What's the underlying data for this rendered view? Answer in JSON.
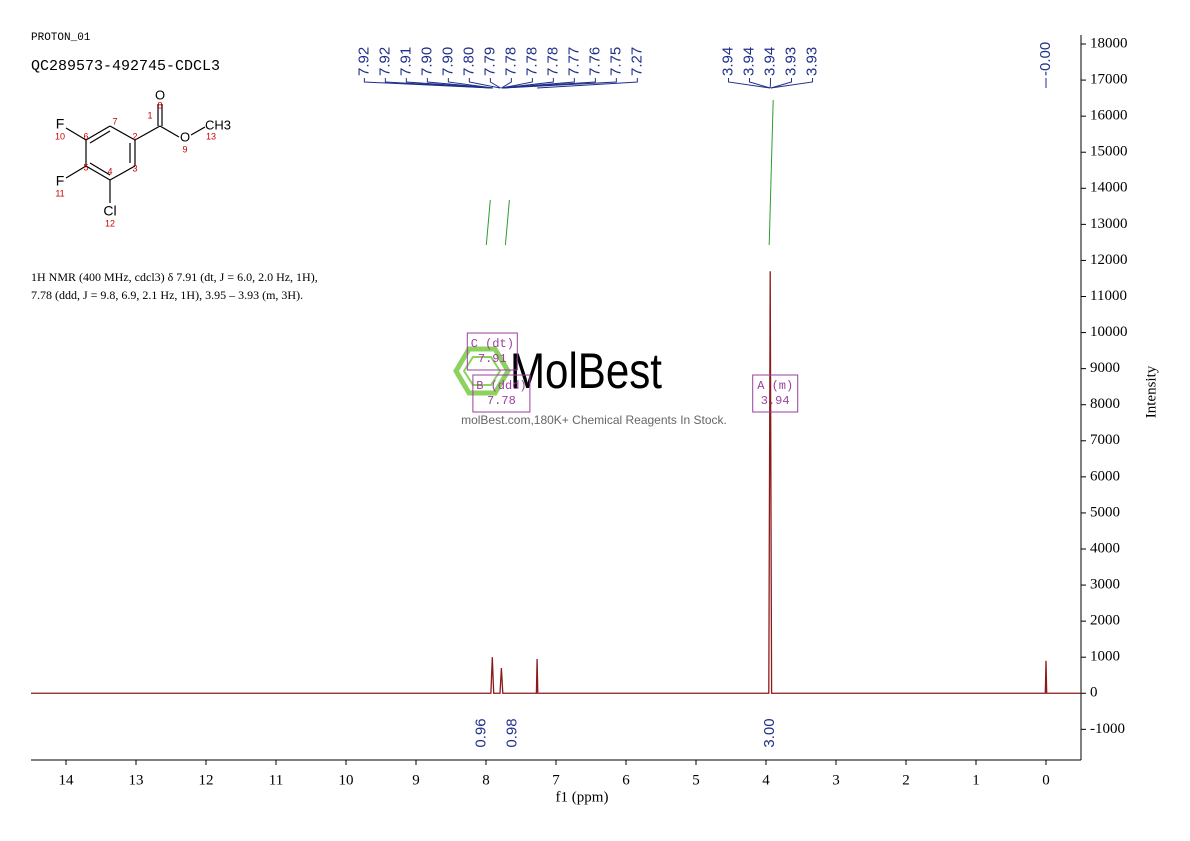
{
  "chart_data": {
    "type": "line",
    "subtitle": "PROTON_01",
    "title": "QC289573-492745-CDCL3",
    "description": [
      "1H NMR (400 MHz, cdcl3) δ 7.91 (dt, J = 6.0, 2.0 Hz, 1H),",
      "7.78 (ddd, J = 9.8, 6.9, 2.1 Hz, 1H), 3.95 – 3.93 (m, 3H)."
    ],
    "xlabel": "f1 (ppm)",
    "ylabel": "Intensity",
    "xlim": [
      14.5,
      -0.5
    ],
    "xticks": [
      14,
      13,
      12,
      11,
      10,
      9,
      8,
      7,
      6,
      5,
      4,
      3,
      2,
      1,
      0
    ],
    "ylim": [
      -1850,
      18250
    ],
    "yticks": [
      -1000,
      0,
      1000,
      2000,
      3000,
      4000,
      5000,
      6000,
      7000,
      8000,
      9000,
      10000,
      11000,
      12000,
      13000,
      14000,
      15000,
      16000,
      17000,
      18000
    ],
    "x": [
      14.5,
      7.93,
      7.91,
      7.89,
      7.8,
      7.78,
      7.76,
      7.28,
      7.27,
      7.26,
      3.96,
      3.94,
      3.92,
      0.01,
      0,
      -0.01,
      -0.5
    ],
    "series": [
      {
        "color": "#8b1a1a",
        "values": [
          0,
          0,
          1000,
          0,
          0,
          700,
          0,
          0,
          950,
          0,
          0,
          11700,
          0,
          0,
          900,
          0,
          0
        ]
      }
    ],
    "peak_labels": [
      [
        "7.92",
        "7.92",
        "7.91",
        "7.90",
        "7.90",
        "7.80",
        "7.79",
        "7.78",
        "7.78",
        "7.78",
        "7.77",
        "7.76",
        "7.75",
        "7.27"
      ],
      [
        "3.94",
        "3.94",
        "3.94",
        "3.93",
        "3.93"
      ],
      [
        "-0.00"
      ]
    ],
    "integrals": {
      "x": [
        7.91,
        7.78,
        3.94
      ],
      "values": [
        0.96,
        0.98,
        3.0
      ],
      "value_labels": [
        "0.96",
        "0.98",
        "3.00"
      ],
      "color": "#2e9b2e"
    },
    "multiplets": [
      {
        "label": "C (dt)",
        "shift": 7.91
      },
      {
        "label": "B (ddd)",
        "shift": 7.78
      },
      {
        "label": "A (m)",
        "shift": 3.94
      }
    ],
    "watermark": {
      "brand": "MolBest",
      "tagline": "molBest.com,180K+ Chemical Reagents In Stock."
    },
    "structure": {
      "atoms": [
        "F",
        "10",
        "F",
        "11",
        "Cl",
        "12",
        "O",
        "8",
        "O",
        "9",
        "CH3",
        "13",
        "1",
        "2",
        "3",
        "4",
        "5",
        "6",
        "7"
      ]
    }
  }
}
